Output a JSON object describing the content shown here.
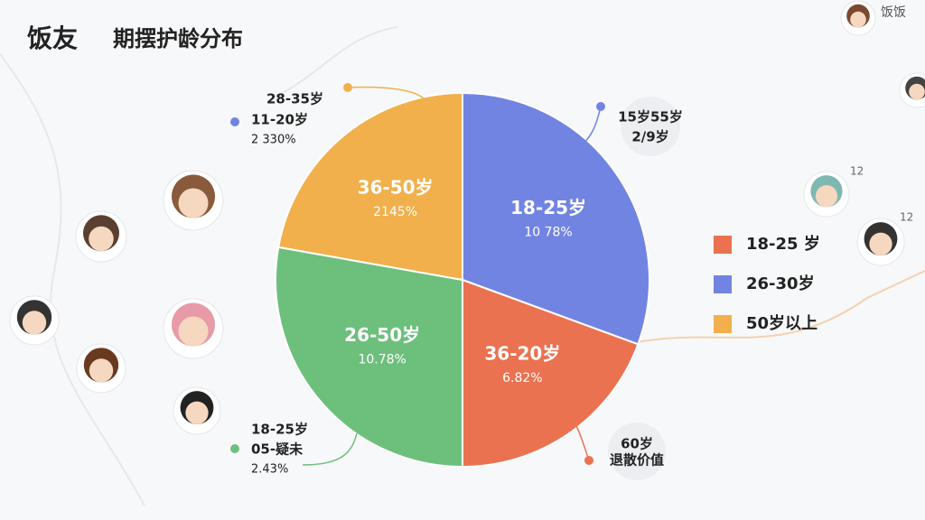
{
  "header": {
    "brand": "饭友",
    "title": "期摆护龄分布",
    "corner": "饭饭",
    "badges": [
      "12",
      "12"
    ]
  },
  "chart_data": {
    "type": "pie",
    "categories": [
      "18-25岁",
      "36-20岁",
      "26-50岁",
      "36-50岁"
    ],
    "values": [
      30.6,
      19.4,
      27.8,
      22.2
    ],
    "slice_labels": [
      "10 78%",
      "6.82%",
      "10.78%",
      "2145%"
    ],
    "colors": [
      "#7284e2",
      "#ea7250",
      "#6dbf7c",
      "#f1b04c"
    ],
    "legend": [
      {
        "label": "18-25 岁",
        "color": "#ea7250"
      },
      {
        "label": "26-30岁",
        "color": "#7284e2"
      },
      {
        "label": "50岁以上",
        "color": "#f1b04c"
      }
    ],
    "annotations": [
      {
        "lines": [
          "28-35岁",
          "11-20岁",
          "2 330%"
        ]
      },
      {
        "lines": [
          "15岁55岁",
          "2/9岁"
        ]
      },
      {
        "lines": [
          "18-25岁",
          "05-疑未",
          "2.43%"
        ]
      },
      {
        "lines": [
          "60岁",
          "退散价值"
        ]
      }
    ]
  }
}
